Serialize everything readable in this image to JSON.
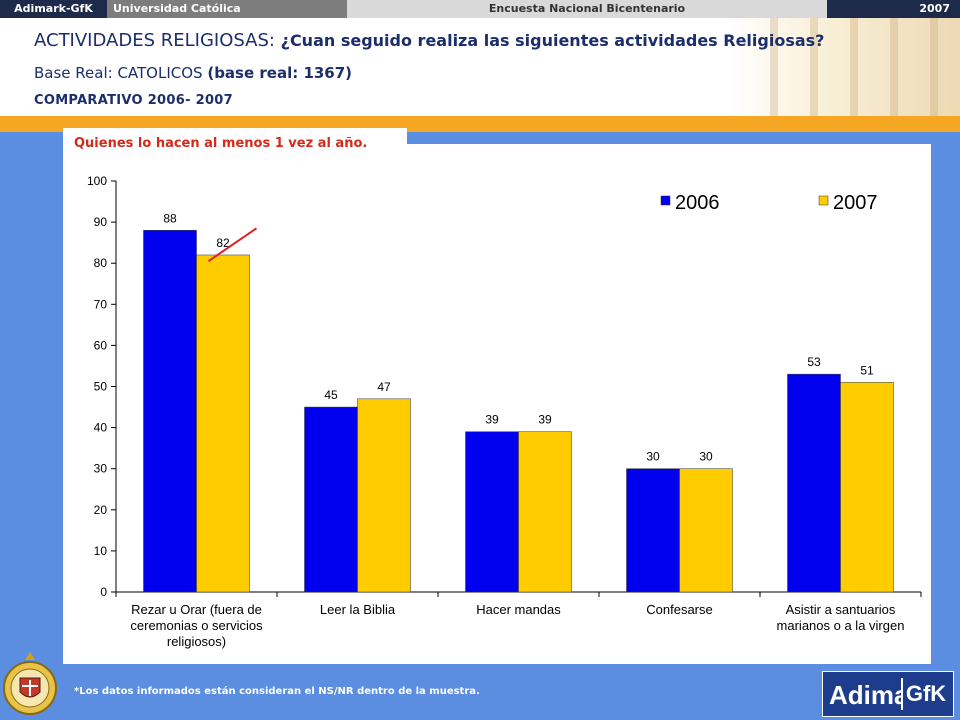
{
  "topbar": {
    "brand": "Adimark-GfK",
    "university": "Universidad Católica",
    "survey": "Encuesta Nacional Bicentenario",
    "year": "2007"
  },
  "header": {
    "title_main": "ACTIVIDADES RELIGIOSAS: ",
    "title_question": "¿Cuan seguido realiza las siguientes actividades Religiosas?",
    "base_prefix": "Base Real: CATOLICOS ",
    "base_bold": "(base real: 1367)",
    "comparative": "COMPARATIVO 2006- 2007"
  },
  "panel_tag": "Quienes lo hacen al menos 1 vez al año.",
  "footnote": "*Los datos informados están consideran el NS/NR dentro de la muestra.",
  "logo": {
    "left": "Adimark",
    "right": "GfK"
  },
  "colors": {
    "series_2006": "#0000ee",
    "series_2007": "#ffcc00",
    "accent": "#f5a623",
    "background": "#5b8de0"
  },
  "chart_data": {
    "type": "bar",
    "categories": [
      [
        "Rezar u Orar (fuera de",
        "ceremonias o servicios",
        "religiosos)"
      ],
      [
        "Leer la Biblia"
      ],
      [
        "Hacer mandas"
      ],
      [
        "Confesarse"
      ],
      [
        "Asistir a santuarios",
        "marianos o a la virgen"
      ]
    ],
    "series": [
      {
        "name": "2006",
        "values": [
          88,
          45,
          39,
          30,
          53
        ]
      },
      {
        "name": "2007",
        "values": [
          82,
          47,
          39,
          30,
          51
        ]
      }
    ],
    "data_labels": [
      [
        "88",
        "45",
        "39",
        "30",
        "53"
      ],
      [
        "82",
        "47",
        "39",
        "30",
        "51"
      ]
    ],
    "ylim": [
      0,
      100
    ],
    "yticks": [
      0,
      10,
      20,
      30,
      40,
      50,
      60,
      70,
      80,
      90,
      100
    ],
    "legend_position": "top-right",
    "grid": false
  }
}
